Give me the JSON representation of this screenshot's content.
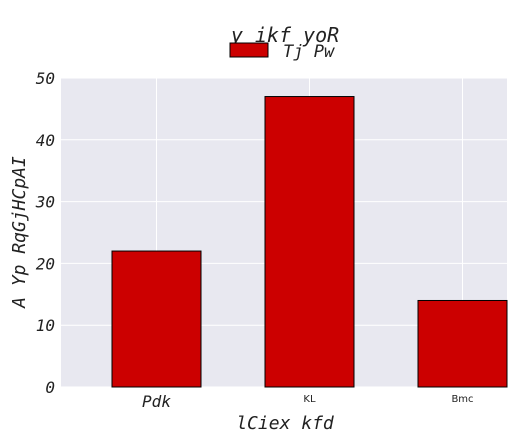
{
  "chart_data": {
    "type": "bar",
    "title": "y  ikf yoR",
    "xlabel": "lCiex kfd",
    "ylabel": "A Yp RqGjHCpAI",
    "categories": [
      "Pdk",
      "KL",
      "Bmc"
    ],
    "series": [
      {
        "name": "Tj Pw",
        "values": [
          22,
          47,
          14
        ],
        "color": "#cc0000"
      }
    ],
    "ylim": [
      0,
      50
    ],
    "yticks": [
      0,
      10,
      20,
      30,
      40,
      50
    ],
    "grid": true,
    "legend_position": "top-center",
    "background_color": "#e8e8f0",
    "grid_color": "#ffffff"
  }
}
